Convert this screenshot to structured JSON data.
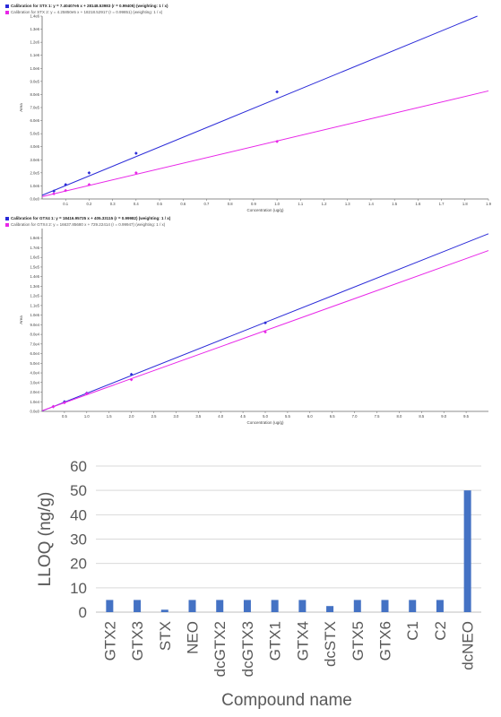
{
  "chart_data": [
    {
      "type": "scatter",
      "title": "Calibration for STX 1: y = 7.40407e5 x + 28148.53983 (r = 0.99405) (weighting: 1 / x)",
      "subtitle": "Calibration for STX 2: y = 4.25850e5 x + 18218.52917 (r = 0.99851) (weighting: 1 / x)",
      "xlabel": "Concentration (ug/g)",
      "ylabel": "Area",
      "xlim": [
        0,
        1.9
      ],
      "ylim": [
        0,
        1400000.0
      ],
      "x_ticks": [
        "0.1",
        "0.2",
        "0.3",
        "0.4",
        "0.5",
        "0.6",
        "0.7",
        "0.8",
        "0.9",
        "1.0",
        "1.1",
        "1.2",
        "1.3",
        "1.4",
        "1.5",
        "1.6",
        "1.7",
        "1.8",
        "1.9"
      ],
      "y_ticks": [
        "0.0e0",
        "1.0e5",
        "2.0e5",
        "3.0e5",
        "4.0e5",
        "5.0e5",
        "6.0e5",
        "7.0e5",
        "8.0e5",
        "9.0e5",
        "1.0e6",
        "1.1e6",
        "1.2e6",
        "1.3e6",
        "1.4e6"
      ],
      "series": [
        {
          "color": "#2a2ad8",
          "fit": {
            "slope": 740407,
            "intercept": 28148.5
          },
          "x": [
            0.05,
            0.1,
            0.2,
            0.4,
            1.0
          ],
          "y": [
            60000,
            110000,
            200000,
            350000,
            820000
          ]
        },
        {
          "color": "#e826e8",
          "fit": {
            "slope": 425850,
            "intercept": 18218.5
          },
          "x": [
            0.05,
            0.1,
            0.2,
            0.4,
            1.0
          ],
          "y": [
            40000,
            65000,
            110000,
            200000,
            440000
          ]
        }
      ]
    },
    {
      "type": "scatter",
      "title": "Calibration for GTX4 1: y = 18416.95725 x + 405.33115 (r = 0.99982) (weighting: 1 / x)",
      "subtitle": "Calibration for GTX4 2: y = 16637.85680 x + 729.22414 (r = 0.99947) (weighting: 1 / x)",
      "xlabel": "Concentration (ug/g)",
      "ylabel": "Area",
      "xlim": [
        0,
        10
      ],
      "ylim": [
        0,
        190000
      ],
      "x_ticks": [
        "0.5",
        "1.0",
        "1.5",
        "2.0",
        "2.5",
        "3.0",
        "3.5",
        "4.0",
        "4.5",
        "5.0",
        "5.5",
        "6.0",
        "6.5",
        "7.0",
        "7.5",
        "8.0",
        "8.5",
        "9.0",
        "9.5"
      ],
      "y_ticks": [
        "0.0e0",
        "1.0e4",
        "2.0e4",
        "3.0e4",
        "4.0e4",
        "5.0e4",
        "6.0e4",
        "7.0e4",
        "8.0e4",
        "9.0e4",
        "1.0e5",
        "1.1e5",
        "1.2e5",
        "1.3e5",
        "1.4e5",
        "1.5e5",
        "1.6e5",
        "1.7e5",
        "1.8e5"
      ],
      "series": [
        {
          "color": "#2a2ad8",
          "fit": {
            "slope": 18416.96,
            "intercept": 405.33
          },
          "x": [
            0.25,
            0.5,
            1.0,
            2.0,
            5.0
          ],
          "y": [
            5000,
            10000,
            19000,
            38500,
            92000
          ]
        },
        {
          "color": "#e826e8",
          "fit": {
            "slope": 16637.86,
            "intercept": 729.22
          },
          "x": [
            0.25,
            0.5,
            1.0,
            2.0,
            5.0
          ],
          "y": [
            5000,
            9000,
            18500,
            33000,
            82500
          ]
        }
      ]
    },
    {
      "type": "bar",
      "categories": [
        "GTX2",
        "GTX3",
        "STX",
        "NEO",
        "dcGTX2",
        "dcGTX3",
        "GTX1",
        "GTX4",
        "dcSTX",
        "GTX5",
        "GTX6",
        "C1",
        "C2",
        "dcNEO"
      ],
      "values": [
        5,
        5,
        1,
        5,
        5,
        5,
        5,
        5,
        2.5,
        5,
        5,
        5,
        5,
        50
      ],
      "xlabel": "Compound name",
      "ylabel": "LLOQ (ng/g)",
      "ylim": [
        0,
        60
      ],
      "y_ticks": [
        "0",
        "10",
        "20",
        "30",
        "40",
        "50",
        "60"
      ],
      "bar_color": "#4472c4",
      "grid": true
    }
  ]
}
